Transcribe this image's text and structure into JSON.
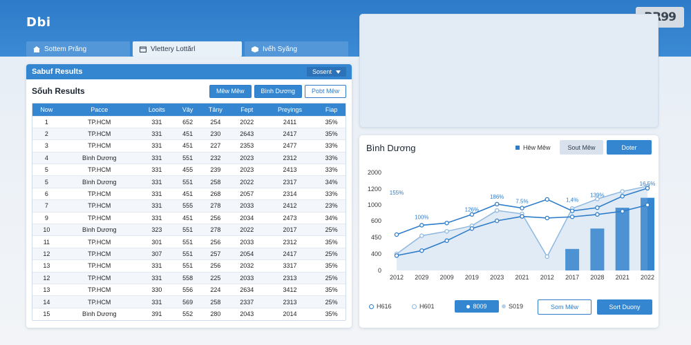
{
  "app": {
    "logo": "Dbi",
    "brand_badge": "RR99"
  },
  "nav": {
    "tabs": [
      {
        "label": "Sottem Prăng",
        "icon": "home-icon"
      },
      {
        "label": "Vlettery Lottărl",
        "icon": "calendar-icon"
      },
      {
        "label": "Ivếh Syăng",
        "icon": "box-icon"
      }
    ]
  },
  "results_panel": {
    "header_title": "Sabuf Results",
    "sort_label": "Sosent",
    "subtitle": "Sốuh Results",
    "buttons": {
      "first": "Mêw Mêw",
      "second": "Bình Dương",
      "third": "Pobt Mêw"
    },
    "columns": [
      "Now",
      "Pacce",
      "Looits",
      "Vây",
      "Tảny",
      "Fept",
      "Preyings",
      "Fiap"
    ],
    "rows": [
      [
        "1",
        "TP.HCM",
        "331",
        "652",
        "254",
        "2022",
        "2411",
        "35%"
      ],
      [
        "2",
        "TP.HCM",
        "331",
        "451",
        "230",
        "2643",
        "2417",
        "35%"
      ],
      [
        "3",
        "TP.HCM",
        "331",
        "451",
        "227",
        "2353",
        "2477",
        "33%"
      ],
      [
        "4",
        "Bình Dương",
        "331",
        "551",
        "232",
        "2023",
        "2312",
        "33%"
      ],
      [
        "5",
        "TP.HCM",
        "331",
        "455",
        "239",
        "2023",
        "2413",
        "33%"
      ],
      [
        "5",
        "Bình Dương",
        "331",
        "551",
        "258",
        "2022",
        "2317",
        "34%"
      ],
      [
        "6",
        "TP.HCM",
        "331",
        "451",
        "268",
        "2057",
        "2314",
        "33%"
      ],
      [
        "7",
        "TP.HCM",
        "331",
        "555",
        "278",
        "2033",
        "2412",
        "23%"
      ],
      [
        "9",
        "TP.HCM",
        "331",
        "451",
        "256",
        "2034",
        "2473",
        "34%"
      ],
      [
        "10",
        "Bình Dương",
        "323",
        "551",
        "278",
        "2022",
        "2017",
        "25%"
      ],
      [
        "11",
        "TP.HCM",
        "301",
        "551",
        "256",
        "2033",
        "2312",
        "35%"
      ],
      [
        "12",
        "TP.HCM",
        "307",
        "551",
        "257",
        "2054",
        "2417",
        "25%"
      ],
      [
        "13",
        "TP.HCM",
        "331",
        "551",
        "256",
        "2032",
        "3317",
        "35%"
      ],
      [
        "12",
        "TP.HCM",
        "331",
        "558",
        "225",
        "2033",
        "2313",
        "25%"
      ],
      [
        "13",
        "TP.HCM",
        "330",
        "556",
        "224",
        "2634",
        "3412",
        "35%"
      ],
      [
        "14",
        "TP.HCM",
        "331",
        "569",
        "258",
        "2337",
        "2313",
        "25%"
      ],
      [
        "15",
        "Bình Dương",
        "391",
        "552",
        "280",
        "2043",
        "2014",
        "35%"
      ]
    ]
  },
  "chart_panel": {
    "title": "Bình Dương",
    "legend_label": "Hêw Mêw",
    "button_secondary": "Sout Mêw",
    "button_primary": "Doter",
    "footer": {
      "legend": [
        "H616",
        "H601",
        "8009",
        "S019"
      ],
      "button_secondary": "Som Mêw",
      "button_primary": "Sort Duony"
    }
  },
  "chart_data": {
    "type": "line",
    "title": "",
    "xlabel": "",
    "ylabel": "",
    "categories": [
      "2012",
      "2029",
      "2009",
      "2019",
      "2023",
      "2021",
      "2012",
      "2017",
      "2028",
      "2021",
      "2022"
    ],
    "y_ticks": [
      "0",
      "400",
      "450",
      "600",
      "1000",
      "1200",
      "2000"
    ],
    "grid": false,
    "series": [
      {
        "type": "line",
        "color": "#2e7cc9",
        "values": [
          475,
          560,
          580,
          760,
          1010,
          920,
          1070,
          850,
          930,
          1110,
          1240
        ]
      },
      {
        "type": "area",
        "color": "#8fb8e0",
        "values": [
          400,
          465,
          505,
          555,
          860,
          775,
          335,
          910,
          1075,
          1170,
          1340
        ]
      },
      {
        "type": "line",
        "color": "#2e7cc9",
        "values": [
          360,
          410,
          440,
          530,
          600,
          710,
          670,
          700,
          760,
          840,
          1000
        ]
      },
      {
        "type": "bar",
        "color": "#3486d0",
        "values": [
          null,
          null,
          null,
          null,
          null,
          null,
          null,
          415,
          530,
          930,
          1090
        ]
      }
    ],
    "annotations": [
      {
        "text": "100%",
        "x": "2029",
        "y": 640
      },
      {
        "text": "126%",
        "x": "2019",
        "y": 835
      },
      {
        "text": "186%",
        "x": "2023",
        "y": 1080
      },
      {
        "text": "155%",
        "x": "2012",
        "y": 1130
      },
      {
        "text": "1,4%",
        "x": "2017",
        "y": 1040
      },
      {
        "text": "139%",
        "x": "2028",
        "y": 1100
      },
      {
        "text": "7.5%",
        "x": "2021",
        "y": 1020
      },
      {
        "text": "16.5%",
        "x": "2022",
        "y": 1365
      }
    ]
  }
}
